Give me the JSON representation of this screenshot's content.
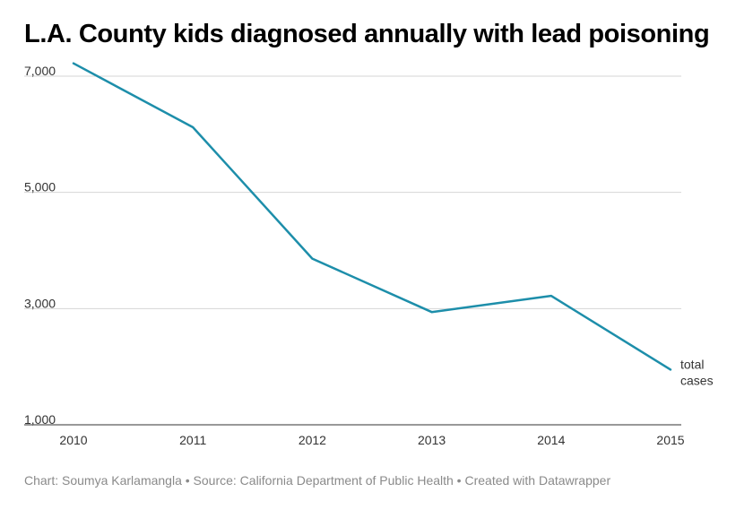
{
  "title": "L.A. County kids diagnosed annually with lead poisoning",
  "colors": {
    "line": "#1d8eaa",
    "grid": "#d6d6d6",
    "axis_text": "#333333",
    "footer_text": "#8a8a8a"
  },
  "chart_data": {
    "type": "line",
    "title": "L.A. County kids diagnosed annually with lead poisoning",
    "xlabel": "",
    "ylabel": "",
    "x": [
      2010,
      2011,
      2012,
      2013,
      2014,
      2015
    ],
    "x_tick_labels": [
      "2010",
      "2011",
      "2012",
      "2013",
      "2014",
      "2015"
    ],
    "y_ticks": [
      1000,
      3000,
      5000,
      7000
    ],
    "y_tick_labels": [
      "1,000",
      "3,000",
      "5,000",
      "7,000"
    ],
    "ylim": [
      1000,
      7200
    ],
    "grid": true,
    "series": [
      {
        "name": "total cases",
        "values": [
          7220,
          6120,
          3860,
          2940,
          3220,
          1950
        ]
      }
    ]
  },
  "footer": {
    "text": "Chart: Soumya Karlamangla • Source: California Department of Public Health • Created with Datawrapper"
  }
}
